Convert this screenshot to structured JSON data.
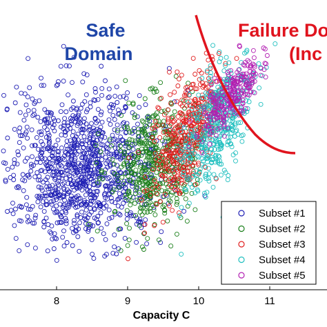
{
  "chart_data": {
    "type": "scatter",
    "title": "",
    "xlabel": "Capacity C",
    "ylabel": "",
    "xlim": [
      7.3,
      11.8
    ],
    "xticks": [
      "8",
      "9",
      "10",
      "11"
    ],
    "grid": false,
    "legend_position": "bottom-right",
    "marker": "open-circle",
    "annotations": [
      {
        "id": "safe",
        "lines": [
          "Safe",
          "Domain"
        ],
        "color": "#1f46a8"
      },
      {
        "id": "failure",
        "lines": [
          "Failure Do",
          "(Inc"
        ],
        "color": "#e0141e"
      }
    ],
    "boundary": {
      "color": "#e0141e",
      "description": "failure boundary curve"
    },
    "series": [
      {
        "name": "Subset #1",
        "color": "#1f1fb4",
        "center_x": 8.35,
        "spread_x": 0.55,
        "count": 1100
      },
      {
        "name": "Subset #2",
        "color": "#1a7f1a",
        "center_x": 9.35,
        "spread_x": 0.3,
        "count": 500
      },
      {
        "name": "Subset #3",
        "color": "#e01e1e",
        "center_x": 9.85,
        "spread_x": 0.25,
        "count": 450
      },
      {
        "name": "Subset #4",
        "color": "#1fbfbf",
        "center_x": 10.25,
        "spread_x": 0.25,
        "count": 450
      },
      {
        "name": "Subset #5",
        "color": "#b21fb2",
        "center_x": 10.45,
        "spread_x": 0.2,
        "count": 260
      }
    ]
  }
}
